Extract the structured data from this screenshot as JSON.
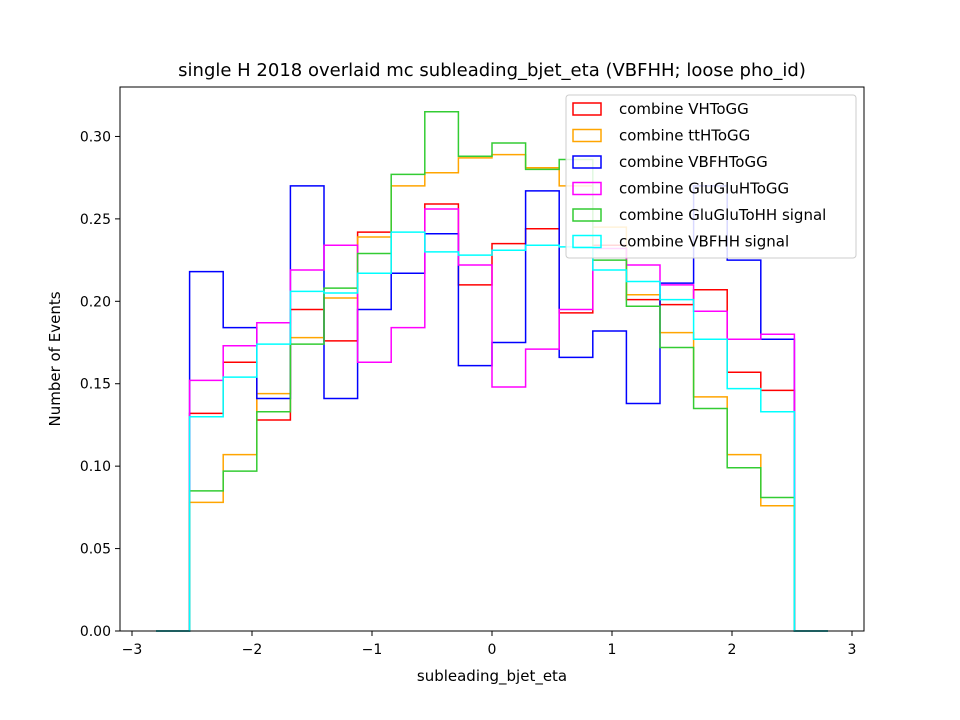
{
  "chart_data": {
    "type": "histogram-step",
    "title": "single H 2018 overlaid mc subleading_bjet_eta (VBFHH; loose pho_id)",
    "xlabel": "subleading_bjet_eta",
    "ylabel": "Number of Events",
    "xlim": [
      -3.1,
      3.1
    ],
    "ylim": [
      0.0,
      0.33
    ],
    "xticks": [
      -3,
      -2,
      -1,
      0,
      1,
      2,
      3
    ],
    "xtick_labels": [
      "−3",
      "−2",
      "−1",
      "0",
      "1",
      "2",
      "3"
    ],
    "yticks": [
      0.0,
      0.05,
      0.1,
      0.15,
      0.2,
      0.25,
      0.3
    ],
    "ytick_labels": [
      "0.00",
      "0.05",
      "0.10",
      "0.15",
      "0.20",
      "0.25",
      "0.30"
    ],
    "grid": false,
    "legend_position": "top-right",
    "bin_edges": [
      -2.8,
      -2.52,
      -2.24,
      -1.96,
      -1.68,
      -1.4,
      -1.12,
      -0.84,
      -0.56,
      -0.28,
      0.0,
      0.28,
      0.56,
      0.84,
      1.12,
      1.4,
      1.68,
      1.96,
      2.24,
      2.52,
      2.8
    ],
    "series": [
      {
        "name": "combine VHToGG",
        "color": "#ff0000",
        "values": [
          0,
          0.132,
          0.163,
          0.128,
          0.195,
          0.176,
          0.242,
          0.217,
          0.259,
          0.21,
          0.235,
          0.244,
          0.193,
          0.234,
          0.201,
          0.198,
          0.207,
          0.157,
          0.146,
          0
        ]
      },
      {
        "name": "combine ttHToGG",
        "color": "#ffa500",
        "values": [
          0,
          0.078,
          0.107,
          0.144,
          0.178,
          0.202,
          0.239,
          0.27,
          0.278,
          0.287,
          0.289,
          0.281,
          0.27,
          0.245,
          0.204,
          0.181,
          0.142,
          0.107,
          0.076,
          0
        ]
      },
      {
        "name": "combine VBFHToGG",
        "color": "#0000ff",
        "values": [
          0,
          0.218,
          0.184,
          0.141,
          0.27,
          0.141,
          0.195,
          0.217,
          0.241,
          0.161,
          0.175,
          0.267,
          0.166,
          0.182,
          0.138,
          0.211,
          0.27,
          0.225,
          0.177,
          0
        ]
      },
      {
        "name": "combine GluGluHToGG",
        "color": "#ff00ff",
        "values": [
          0,
          0.152,
          0.173,
          0.187,
          0.219,
          0.234,
          0.163,
          0.184,
          0.256,
          0.222,
          0.148,
          0.171,
          0.195,
          0.232,
          0.222,
          0.21,
          0.194,
          0.177,
          0.18,
          0
        ]
      },
      {
        "name": "combine GluGluToHH signal",
        "color": "#33cc33",
        "values": [
          0,
          0.085,
          0.097,
          0.133,
          0.174,
          0.208,
          0.229,
          0.277,
          0.315,
          0.288,
          0.296,
          0.28,
          0.286,
          0.225,
          0.197,
          0.172,
          0.135,
          0.099,
          0.081,
          0
        ]
      },
      {
        "name": "combine VBFHH signal",
        "color": "#00ffff",
        "values": [
          0,
          0.13,
          0.154,
          0.174,
          0.206,
          0.205,
          0.217,
          0.242,
          0.23,
          0.228,
          0.231,
          0.234,
          0.233,
          0.219,
          0.212,
          0.201,
          0.177,
          0.147,
          0.133,
          0
        ]
      }
    ]
  }
}
